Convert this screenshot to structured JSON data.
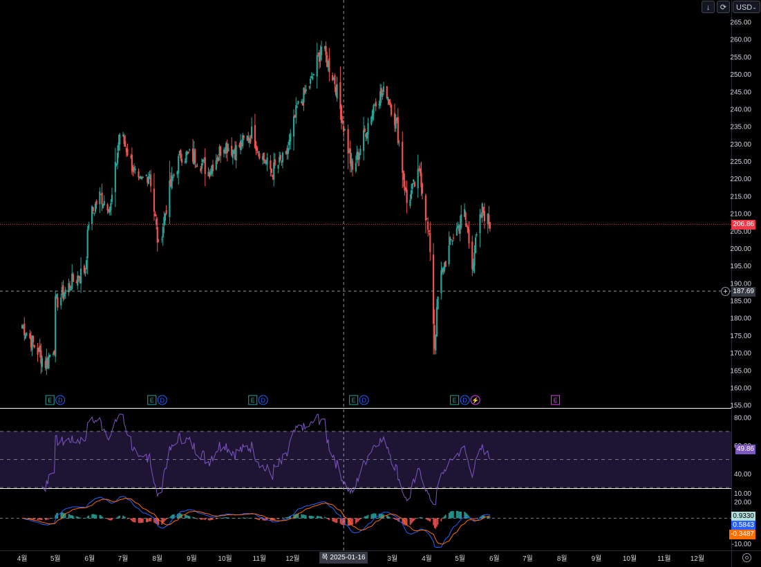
{
  "toolbar": {
    "download_icon": "download-arrow-icon",
    "reload_icon": "refresh-icon",
    "currency": "USD",
    "currency_chevron": "chevron-down-icon"
  },
  "colors": {
    "background": "#000000",
    "up": "#26a69a",
    "down": "#ef5350",
    "rsi": "#7e57c2",
    "rsi_band": "#1e1433",
    "macd_line": "#2962ff",
    "signal_line": "#ff6d00",
    "hist_up": "#26a69a",
    "hist_down": "#ef5350",
    "last_price": "#f23645",
    "crosshair": "#9598a1",
    "grid_line": "#ffffff"
  },
  "price_badges": {
    "last_price": "206.86",
    "crosshair_price": "187.69"
  },
  "rsi_badges": {
    "value": "49.86"
  },
  "macd_badges": {
    "histogram": "0.9330",
    "macd": "0.5843",
    "signal": "-0.3487"
  },
  "crosshair_date_label": "목 2025-01-16",
  "reset_icon": "settings-gear-icon",
  "chart_data": [
    {
      "type": "candlestick",
      "pane": "price",
      "currency": "USD",
      "ylim": [
        155,
        265
      ],
      "y_ticks": [
        "265.00",
        "260.00",
        "255.00",
        "250.00",
        "245.00",
        "240.00",
        "235.00",
        "230.00",
        "225.00",
        "220.00",
        "215.00",
        "210.00",
        "205.00",
        "200.00",
        "195.00",
        "190.00",
        "185.00",
        "180.00",
        "175.00",
        "170.00",
        "165.00",
        "160.00",
        "155.00"
      ],
      "x_ticks": [
        "4월",
        "5월",
        "6월",
        "7월",
        "8월",
        "9월",
        "10월",
        "11월",
        "12월",
        "2025-01-16",
        "3월",
        "4월",
        "5월",
        "6월",
        "7월",
        "8월",
        "9월",
        "10월",
        "11월",
        "12월"
      ],
      "last_price": 206.86,
      "crosshair_price": 187.69,
      "crosshair_date": "2025-01-16",
      "anchor_close": [
        [
          "2024-04-01",
          178
        ],
        [
          "2024-04-12",
          172
        ],
        [
          "2024-04-22",
          167
        ],
        [
          "2024-04-30",
          172
        ],
        [
          "2024-05-01",
          184
        ],
        [
          "2024-05-15",
          190
        ],
        [
          "2024-05-28",
          194
        ],
        [
          "2024-05-31",
          208
        ],
        [
          "2024-06-10",
          215
        ],
        [
          "2024-06-20",
          212
        ],
        [
          "2024-06-28",
          233
        ],
        [
          "2024-07-05",
          228
        ],
        [
          "2024-07-15",
          218
        ],
        [
          "2024-07-25",
          222
        ],
        [
          "2024-08-02",
          200
        ],
        [
          "2024-08-12",
          217
        ],
        [
          "2024-08-22",
          227
        ],
        [
          "2024-09-05",
          226
        ],
        [
          "2024-09-16",
          222
        ],
        [
          "2024-09-30",
          230
        ],
        [
          "2024-10-10",
          228
        ],
        [
          "2024-10-25",
          233
        ],
        [
          "2024-11-04",
          226
        ],
        [
          "2024-11-12",
          222
        ],
        [
          "2024-11-25",
          226
        ],
        [
          "2024-12-05",
          240
        ],
        [
          "2024-12-18",
          248
        ],
        [
          "2024-12-27",
          258
        ],
        [
          "2025-01-08",
          248
        ],
        [
          "2025-01-16",
          235
        ],
        [
          "2025-01-24",
          222
        ],
        [
          "2025-02-03",
          232
        ],
        [
          "2025-02-14",
          243
        ],
        [
          "2025-02-24",
          245
        ],
        [
          "2025-03-05",
          235
        ],
        [
          "2025-03-14",
          213
        ],
        [
          "2025-03-26",
          222
        ],
        [
          "2025-04-04",
          200
        ],
        [
          "2025-04-08",
          172
        ],
        [
          "2025-04-12",
          190
        ],
        [
          "2025-04-24",
          203
        ],
        [
          "2025-05-05",
          210
        ],
        [
          "2025-05-12",
          196
        ],
        [
          "2025-05-21",
          211
        ],
        [
          "2025-05-28",
          206.86
        ]
      ],
      "events": [
        {
          "date": "2024-05-01",
          "markers": [
            "E",
            "D"
          ]
        },
        {
          "date": "2024-08-01",
          "markers": [
            "E",
            "D"
          ]
        },
        {
          "date": "2024-10-31",
          "markers": [
            "E",
            "D"
          ]
        },
        {
          "date": "2025-01-30",
          "markers": [
            "E",
            "D"
          ]
        },
        {
          "date": "2025-05-01",
          "markers": [
            "E",
            "D",
            "⚡"
          ]
        },
        {
          "date": "2025-07-31",
          "markers": [
            "E"
          ]
        }
      ]
    },
    {
      "type": "line",
      "pane": "rsi",
      "name": "",
      "ylim": [
        15,
        85
      ],
      "y_ticks": [
        "80.00",
        "60.00",
        "40.00",
        "20.00"
      ],
      "bands": [
        30,
        50,
        70
      ],
      "last_value": 49.86
    },
    {
      "type": "line",
      "pane": "macd",
      "ylim": [
        -12,
        12
      ],
      "y_ticks": [
        "10.00",
        "-10.00"
      ],
      "histogram": 0.933,
      "macd": 0.5843,
      "signal": -0.3487
    }
  ]
}
